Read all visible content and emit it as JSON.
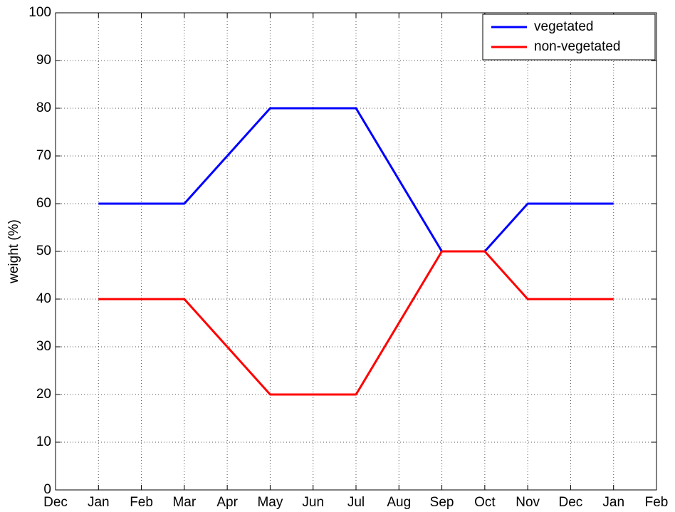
{
  "chart_data": {
    "type": "line",
    "ylabel": "weight (%)",
    "categories": [
      "Dec",
      "Jan",
      "Feb",
      "Mar",
      "Apr",
      "May",
      "Jun",
      "Jul",
      "Aug",
      "Sep",
      "Oct",
      "Nov",
      "Dec",
      "Jan",
      "Feb"
    ],
    "series": [
      {
        "name": "vegetated",
        "color": "#0000ff",
        "values": [
          null,
          60,
          60,
          60,
          70,
          80,
          80,
          80,
          65,
          50,
          50,
          60,
          60,
          60,
          null
        ]
      },
      {
        "name": "non-vegetated",
        "color": "#ff0000",
        "values": [
          null,
          40,
          40,
          40,
          30,
          20,
          20,
          20,
          35,
          50,
          50,
          40,
          40,
          40,
          null
        ]
      }
    ],
    "ylim": [
      0,
      100
    ],
    "yticks": [
      0,
      10,
      20,
      30,
      40,
      50,
      60,
      70,
      80,
      90,
      100
    ],
    "grid": true,
    "legend": "upper right"
  }
}
